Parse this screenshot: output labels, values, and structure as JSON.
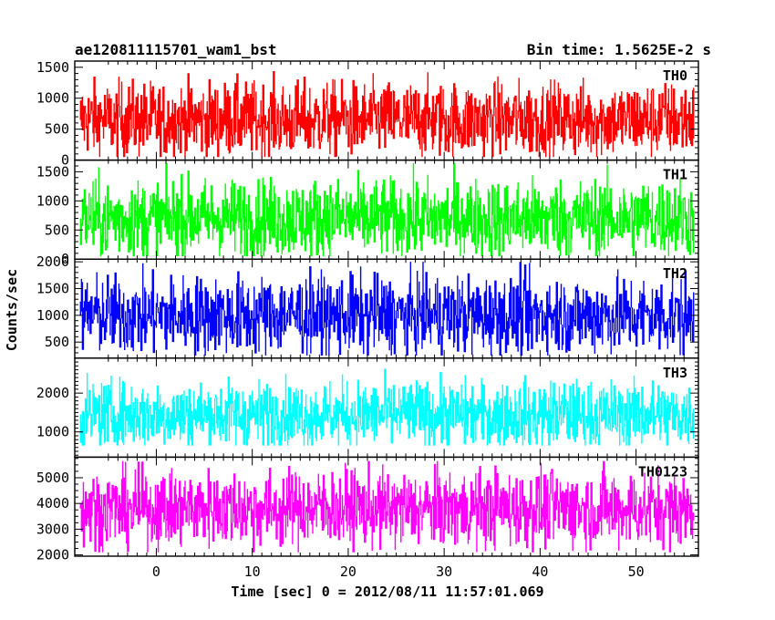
{
  "header": {
    "title": "ae120811115701_wam1_bst",
    "bin_time": "Bin time: 1.5625E-2 s"
  },
  "chart_data": {
    "type": "line",
    "title": "ae120811115701_wam1_bst",
    "subtitle": "Bin time: 1.5625E-2 s",
    "xlabel": "Time [sec] 0 = 2012/08/11 11:57:01.069",
    "ylabel": "Counts/sec",
    "xlim": [
      -8.5,
      56.5
    ],
    "x_ticks": [
      0,
      10,
      20,
      30,
      40,
      50
    ],
    "x_range": [
      -7.9,
      56.0
    ],
    "bin_time": 0.015625,
    "grid": false,
    "panels": [
      {
        "name": "TH0",
        "color": "#ff0000",
        "ylim": [
          0,
          1600
        ],
        "ticks": [
          0,
          500,
          1000,
          1500
        ],
        "mean": 650,
        "low": 50,
        "high": 1500
      },
      {
        "name": "TH1",
        "color": "#00ff00",
        "ylim": [
          0,
          1700
        ],
        "ticks": [
          0,
          500,
          1000,
          1500
        ],
        "mean": 700,
        "low": 50,
        "high": 1650
      },
      {
        "name": "TH2",
        "color": "#0000ff",
        "ylim": [
          200,
          2050
        ],
        "ticks": [
          500,
          1000,
          1500,
          2000
        ],
        "mean": 1000,
        "low": 250,
        "high": 2000
      },
      {
        "name": "TH3",
        "color": "#00ffff",
        "ylim": [
          350,
          2900
        ],
        "ticks": [
          1000,
          2000
        ],
        "mean": 1450,
        "low": 650,
        "high": 2700
      },
      {
        "name": "TH0123",
        "color": "#ff00ff",
        "ylim": [
          1950,
          5800
        ],
        "ticks": [
          2000,
          3000,
          4000,
          5000
        ],
        "mean": 3800,
        "low": 2100,
        "high": 5650
      }
    ]
  }
}
